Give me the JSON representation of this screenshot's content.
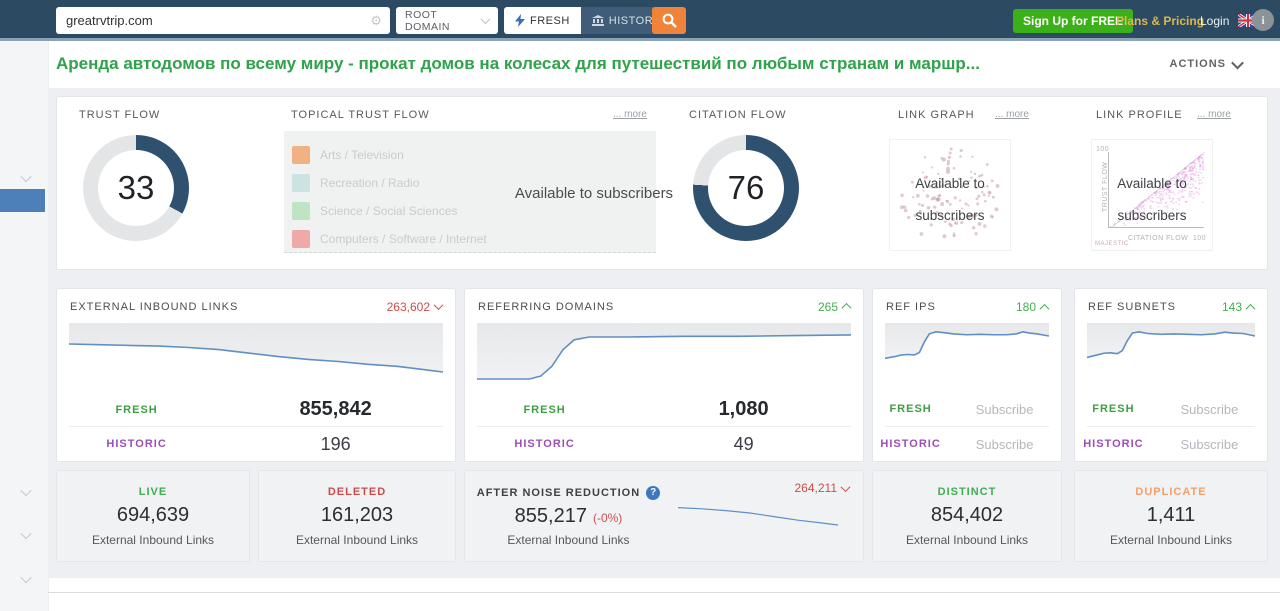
{
  "topbar": {
    "search_value": "greatrvtrip.com",
    "scope_selected": "ROOT DOMAIN",
    "fresh_label": "FRESH",
    "historic_label": "HISTORIC",
    "signup_label": "Sign Up for FREE",
    "plans_label": "Plans & Pricing",
    "login_label": "Login"
  },
  "page": {
    "title": "Аренда автодомов по всему миру - прокат домов на колесах для путешествий по любым странам и маршр...",
    "actions_label": "ACTIONS"
  },
  "flow": {
    "trust_flow": {
      "label": "TRUST FLOW",
      "value": 33
    },
    "citation_flow": {
      "label": "CITATION FLOW",
      "value": 76
    },
    "donut_color": "#2f506e",
    "donut_track": "#e4e5e7",
    "topical": {
      "label": "TOPICAL TRUST FLOW",
      "more_label": "... more",
      "overlay": "Available to subscribers",
      "legend": [
        {
          "name": "Arts / Television",
          "color": "#f0b183"
        },
        {
          "name": "Recreation / Radio",
          "color": "#cde3e2"
        },
        {
          "name": "Science / Social Sciences",
          "color": "#bfe4c4"
        },
        {
          "name": "Computers / Software / Internet",
          "color": "#efa9a9"
        }
      ]
    },
    "link_graph": {
      "label": "LINK GRAPH",
      "more_label": "... more",
      "overlay_line1": "Available to",
      "overlay_line2": "subscribers"
    },
    "link_profile": {
      "label": "LINK PROFILE",
      "more_label": "... more",
      "overlay_line1": "Available to",
      "overlay_line2": "subscribers",
      "y_max": "100",
      "x_max": "100",
      "y_axis": "TRUST FLOW",
      "x_axis": "CITATION FLOW",
      "watermark": "MAJESTIC"
    }
  },
  "panels": [
    {
      "title": "EXTERNAL INBOUND LINKS",
      "badge": "263,602",
      "trend_dir": "down",
      "fresh_label": "FRESH",
      "fresh_value": "855,842",
      "historic_label": "HISTORIC",
      "historic_value": "196",
      "trend": [
        [
          0,
          30
        ],
        [
          8,
          31
        ],
        [
          16,
          32
        ],
        [
          24,
          33
        ],
        [
          32,
          35
        ],
        [
          40,
          38
        ],
        [
          48,
          43
        ],
        [
          56,
          48
        ],
        [
          64,
          52
        ],
        [
          72,
          55
        ],
        [
          80,
          59
        ],
        [
          88,
          62
        ],
        [
          94,
          66
        ],
        [
          100,
          70
        ]
      ]
    },
    {
      "title": "REFERRING DOMAINS",
      "badge": "265",
      "trend_dir": "up",
      "fresh_label": "FRESH",
      "fresh_value": "1,080",
      "historic_label": "HISTORIC",
      "historic_value": "49",
      "trend": [
        [
          0,
          80
        ],
        [
          14,
          80
        ],
        [
          17,
          76
        ],
        [
          20,
          62
        ],
        [
          23,
          38
        ],
        [
          26,
          24
        ],
        [
          30,
          20
        ],
        [
          40,
          20
        ],
        [
          55,
          19
        ],
        [
          70,
          19
        ],
        [
          85,
          18
        ],
        [
          100,
          17
        ]
      ]
    },
    {
      "title": "REF IPS",
      "badge": "180",
      "trend_dir": "up",
      "fresh_label": "FRESH",
      "fresh_value": "Subscribe",
      "historic_label": "HISTORIC",
      "historic_value": "Subscribe",
      "trend": [
        [
          0,
          84
        ],
        [
          6,
          80
        ],
        [
          10,
          76
        ],
        [
          14,
          75
        ],
        [
          18,
          76
        ],
        [
          21,
          70
        ],
        [
          24,
          45
        ],
        [
          27,
          26
        ],
        [
          31,
          21
        ],
        [
          36,
          23
        ],
        [
          42,
          26
        ],
        [
          50,
          28
        ],
        [
          58,
          27
        ],
        [
          66,
          28
        ],
        [
          74,
          28
        ],
        [
          80,
          26
        ],
        [
          84,
          21
        ],
        [
          88,
          24
        ],
        [
          93,
          26
        ],
        [
          100,
          31
        ]
      ]
    },
    {
      "title": "REF SUBNETS",
      "badge": "143",
      "trend_dir": "up",
      "fresh_label": "FRESH",
      "fresh_value": "Subscribe",
      "historic_label": "HISTORIC",
      "historic_value": "Subscribe",
      "trend": [
        [
          0,
          82
        ],
        [
          6,
          76
        ],
        [
          10,
          72
        ],
        [
          14,
          71
        ],
        [
          18,
          73
        ],
        [
          21,
          66
        ],
        [
          24,
          42
        ],
        [
          27,
          24
        ],
        [
          31,
          21
        ],
        [
          36,
          25
        ],
        [
          44,
          27
        ],
        [
          52,
          26
        ],
        [
          60,
          27
        ],
        [
          68,
          28
        ],
        [
          76,
          26
        ],
        [
          82,
          22
        ],
        [
          87,
          24
        ],
        [
          93,
          25
        ],
        [
          100,
          31
        ]
      ]
    }
  ],
  "summary_cards": [
    {
      "label": "LIVE",
      "value": "694,639",
      "sub": "External Inbound Links"
    },
    {
      "label": "DELETED",
      "value": "161,203",
      "sub": "External Inbound Links"
    },
    {
      "label": "AFTER NOISE REDUCTION",
      "value": "855,217",
      "delta": "(-0%)",
      "sub": "External Inbound Links",
      "badge": "264,211",
      "trend": [
        [
          0,
          22
        ],
        [
          15,
          26
        ],
        [
          30,
          32
        ],
        [
          45,
          40
        ],
        [
          60,
          52
        ],
        [
          75,
          64
        ],
        [
          88,
          72
        ],
        [
          100,
          80
        ]
      ]
    },
    {
      "label": "DISTINCT",
      "value": "854,402",
      "sub": "External Inbound Links"
    },
    {
      "label": "DUPLICATE",
      "value": "1,411",
      "sub": "External Inbound Links"
    }
  ]
}
